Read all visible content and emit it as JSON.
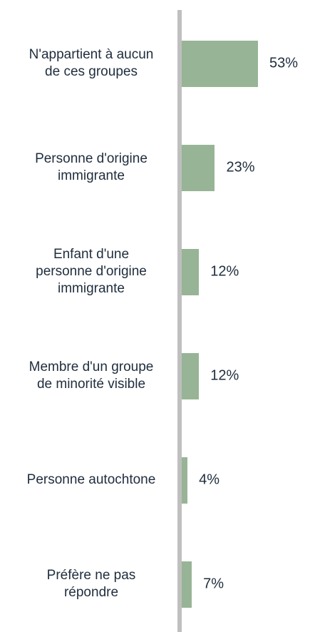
{
  "chart_data": {
    "type": "bar",
    "orientation": "horizontal",
    "categories": [
      "N'appartient à aucun\nde ces groupes",
      "Personne d'origine\nimmigrante",
      "Enfant d'une\npersonne d'origine\nimmigrante",
      "Membre d'un groupe\nde minorité visible",
      "Personne autochtone",
      "Préfère ne pas\nrépondre"
    ],
    "values": [
      53,
      23,
      12,
      12,
      4,
      7
    ],
    "value_labels": [
      "53%",
      "23%",
      "12%",
      "12%",
      "4%",
      "7%"
    ],
    "color": "#98b496"
  }
}
